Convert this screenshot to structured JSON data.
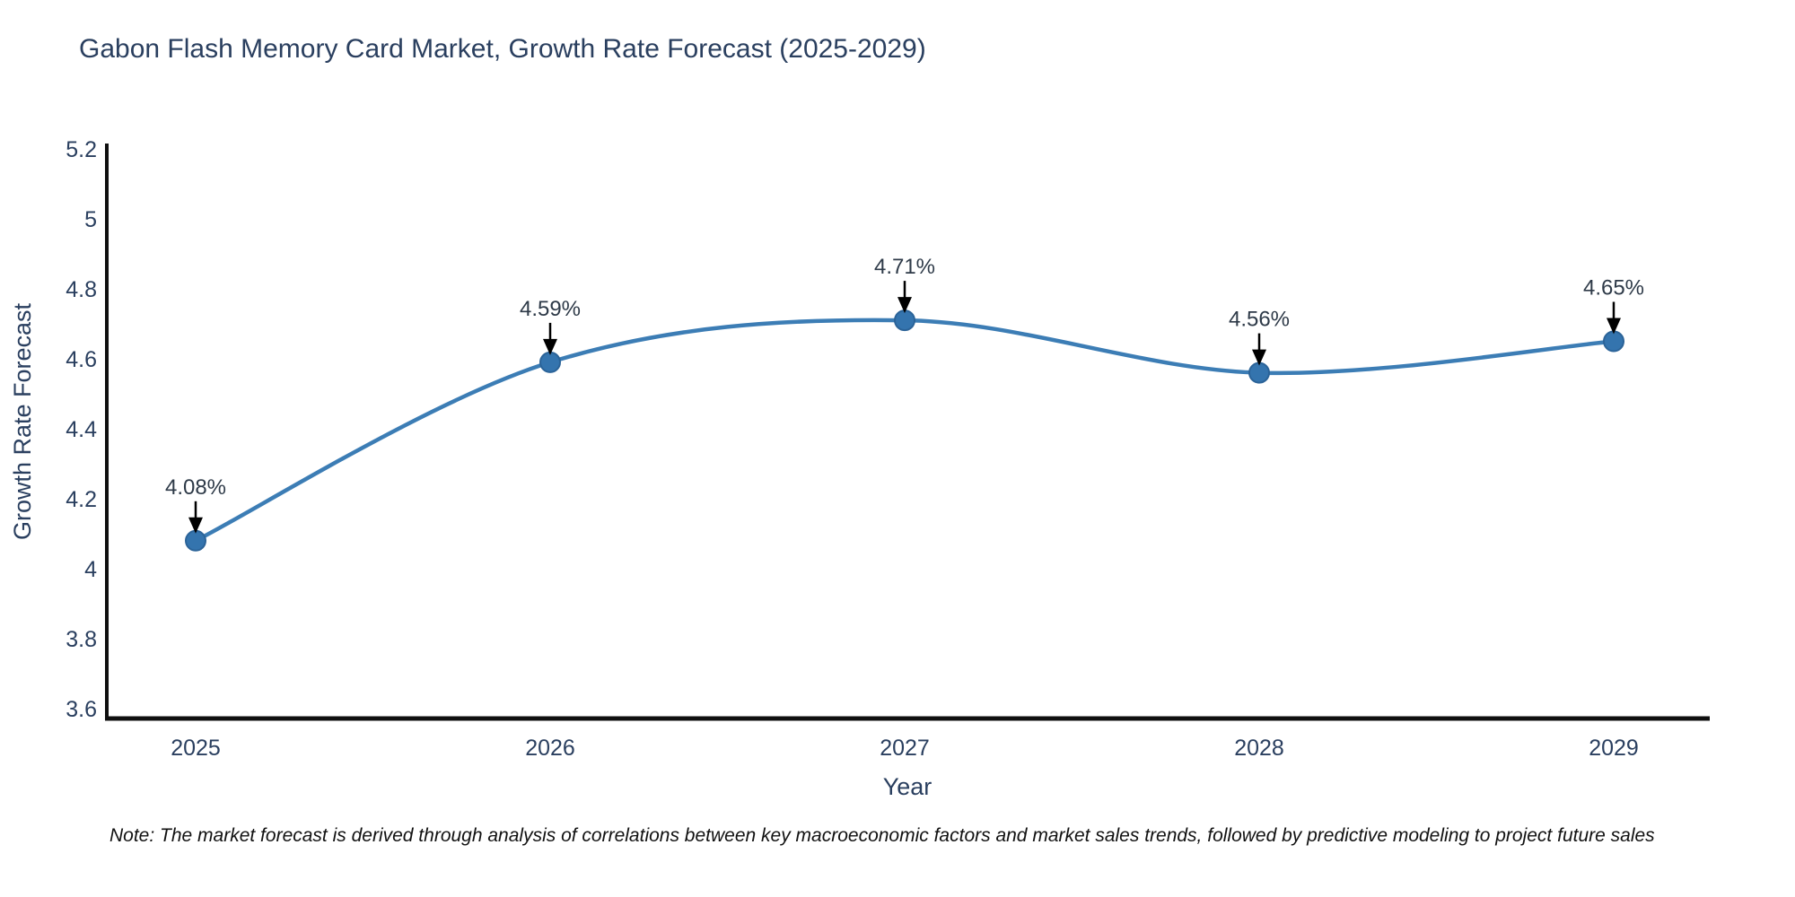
{
  "title": "Gabon Flash Memory Card Market, Growth Rate Forecast (2025-2029)",
  "note": "Note: The market forecast is derived through analysis of correlations between key macroeconomic factors and market sales trends, followed by predictive modeling to project future sales",
  "chart_data": {
    "type": "line",
    "curve": "spline",
    "categories": [
      "2025",
      "2026",
      "2027",
      "2028",
      "2029"
    ],
    "values": [
      4.08,
      4.59,
      4.71,
      4.56,
      4.65
    ],
    "point_labels": [
      "4.08%",
      "4.59%",
      "4.71%",
      "4.56%",
      "4.65%"
    ],
    "title": "Gabon Flash Memory Card Market, Growth Rate Forecast (2025-2029)",
    "xlabel": "Year",
    "ylabel": "Growth Rate Forecast",
    "ylim": [
      3.6,
      5.2
    ],
    "ytick_labels": [
      "3.6",
      "3.8",
      "4",
      "4.2",
      "4.4",
      "4.6",
      "4.8",
      "5",
      "5.2"
    ],
    "yticks": [
      3.6,
      3.8,
      4,
      4.2,
      4.4,
      4.6,
      4.8,
      5,
      5.2
    ],
    "grid": false,
    "legend": "none",
    "annotation_style": "value label above point with downward black arrow"
  },
  "colors": {
    "text": "#2a3f5f",
    "line": "#3c7db5",
    "marker_fill": "#3474ae",
    "marker_edge": "#2b6398",
    "arrow": "#000000",
    "axis_spine": "#0f0f0f",
    "background": "#ffffff"
  }
}
